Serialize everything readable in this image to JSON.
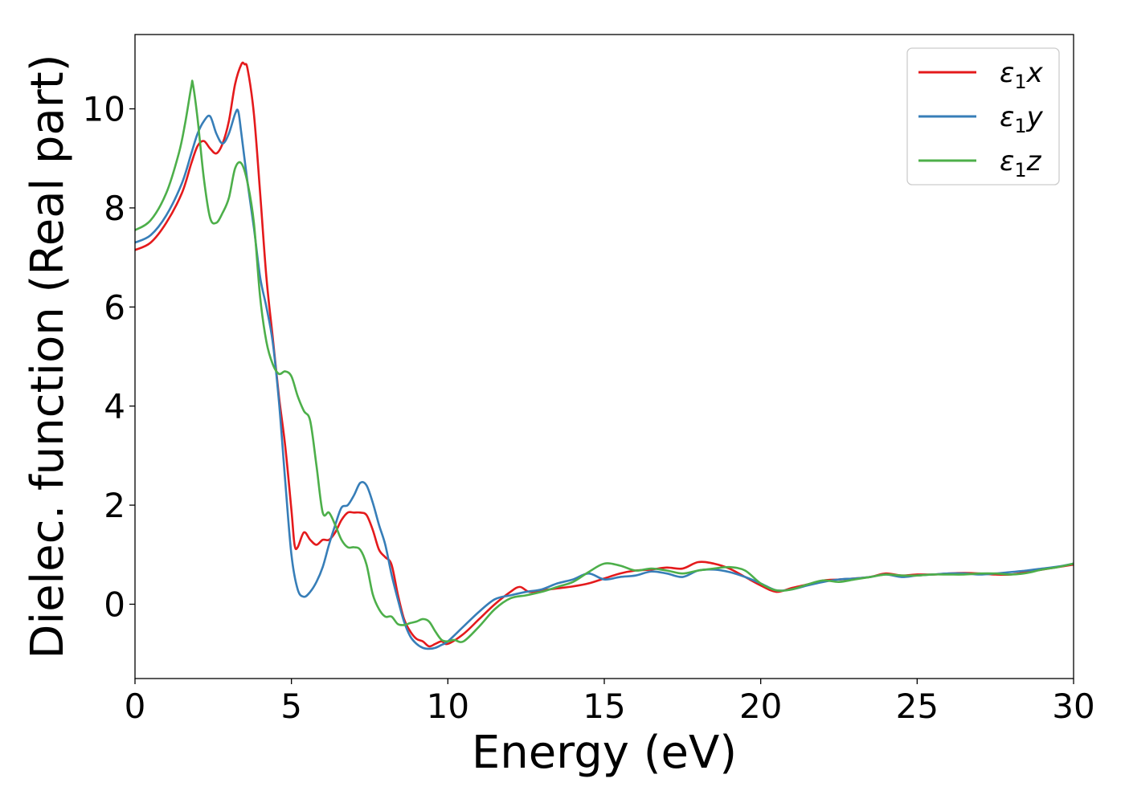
{
  "chart_data": {
    "type": "line",
    "title": "",
    "xlabel": "Energy (eV)",
    "ylabel": "Dielec. function (Real part)",
    "xlim": [
      0,
      30
    ],
    "ylim": [
      -1.5,
      11.5
    ],
    "xticks": [
      0,
      5,
      10,
      15,
      20,
      25,
      30
    ],
    "yticks": [
      0,
      2,
      4,
      6,
      8,
      10
    ],
    "grid": false,
    "legend_position": "top-right",
    "series": [
      {
        "name": "ε1x",
        "legend_base": "ε",
        "legend_sub": "1",
        "legend_var": "x",
        "color": "#e41a1c",
        "x": [
          0,
          0.5,
          1.0,
          1.5,
          1.8,
          2.0,
          2.2,
          2.4,
          2.6,
          2.8,
          3.0,
          3.2,
          3.4,
          3.5,
          3.6,
          3.8,
          4.0,
          4.2,
          4.4,
          4.6,
          4.8,
          5.0,
          5.1,
          5.2,
          5.4,
          5.6,
          5.8,
          6.0,
          6.2,
          6.4,
          6.6,
          6.8,
          7.0,
          7.2,
          7.4,
          7.6,
          7.8,
          8.0,
          8.2,
          8.4,
          8.6,
          8.8,
          9.0,
          9.2,
          9.4,
          9.6,
          9.8,
          10.0,
          10.5,
          11.0,
          11.5,
          12.0,
          12.3,
          12.6,
          13.0,
          13.5,
          14.0,
          14.5,
          15.0,
          15.5,
          16.0,
          16.5,
          17.0,
          17.5,
          18.0,
          18.5,
          19.0,
          19.5,
          20.0,
          20.5,
          21.0,
          21.5,
          22.0,
          22.5,
          23.0,
          23.5,
          24.0,
          24.5,
          25.0,
          25.5,
          26.0,
          26.5,
          27.0,
          27.5,
          28.0,
          28.5,
          29.0,
          29.5,
          30.0
        ],
        "y": [
          7.15,
          7.3,
          7.7,
          8.3,
          8.9,
          9.25,
          9.35,
          9.2,
          9.1,
          9.3,
          9.75,
          10.5,
          10.9,
          10.9,
          10.8,
          9.9,
          8.3,
          6.6,
          5.4,
          4.2,
          3.2,
          1.9,
          1.2,
          1.15,
          1.45,
          1.3,
          1.2,
          1.3,
          1.3,
          1.45,
          1.7,
          1.85,
          1.85,
          1.85,
          1.8,
          1.5,
          1.1,
          0.95,
          0.8,
          0.2,
          -0.3,
          -0.55,
          -0.7,
          -0.75,
          -0.85,
          -0.8,
          -0.75,
          -0.8,
          -0.6,
          -0.3,
          0.0,
          0.25,
          0.35,
          0.25,
          0.28,
          0.32,
          0.36,
          0.42,
          0.52,
          0.62,
          0.68,
          0.7,
          0.74,
          0.72,
          0.85,
          0.82,
          0.72,
          0.55,
          0.38,
          0.25,
          0.33,
          0.4,
          0.48,
          0.5,
          0.52,
          0.55,
          0.62,
          0.58,
          0.6,
          0.6,
          0.62,
          0.63,
          0.62,
          0.6,
          0.6,
          0.65,
          0.7,
          0.75,
          0.8
        ]
      },
      {
        "name": "ε1y",
        "legend_base": "ε",
        "legend_sub": "1",
        "legend_var": "y",
        "color": "#377eb8",
        "x": [
          0,
          0.5,
          1.0,
          1.5,
          1.8,
          2.0,
          2.2,
          2.4,
          2.6,
          2.8,
          3.0,
          3.2,
          3.3,
          3.4,
          3.6,
          3.8,
          4.0,
          4.2,
          4.4,
          4.6,
          4.8,
          5.0,
          5.2,
          5.4,
          5.6,
          5.8,
          6.0,
          6.2,
          6.4,
          6.6,
          6.8,
          7.0,
          7.2,
          7.4,
          7.6,
          7.8,
          8.0,
          8.2,
          8.4,
          8.6,
          8.8,
          9.0,
          9.2,
          9.4,
          9.6,
          9.8,
          10.0,
          10.5,
          11.0,
          11.5,
          12.0,
          12.5,
          13.0,
          13.5,
          14.0,
          14.5,
          15.0,
          15.5,
          16.0,
          16.5,
          17.0,
          17.5,
          18.0,
          18.5,
          19.0,
          19.5,
          20.0,
          20.5,
          21.0,
          21.5,
          22.0,
          22.5,
          23.0,
          23.5,
          24.0,
          24.5,
          25.0,
          25.5,
          26.0,
          26.5,
          27.0,
          27.5,
          28.0,
          28.5,
          29.0,
          29.5,
          30.0
        ],
        "y": [
          7.3,
          7.45,
          7.85,
          8.5,
          9.1,
          9.5,
          9.75,
          9.85,
          9.5,
          9.3,
          9.5,
          9.9,
          9.95,
          9.5,
          8.5,
          7.6,
          6.6,
          6.0,
          5.3,
          4.1,
          2.5,
          1.0,
          0.3,
          0.15,
          0.25,
          0.45,
          0.75,
          1.2,
          1.6,
          1.95,
          2.0,
          2.2,
          2.45,
          2.4,
          2.05,
          1.6,
          1.2,
          0.6,
          0.1,
          -0.35,
          -0.65,
          -0.8,
          -0.88,
          -0.9,
          -0.88,
          -0.82,
          -0.75,
          -0.45,
          -0.15,
          0.1,
          0.18,
          0.25,
          0.3,
          0.42,
          0.5,
          0.62,
          0.5,
          0.55,
          0.58,
          0.66,
          0.62,
          0.55,
          0.68,
          0.7,
          0.65,
          0.55,
          0.42,
          0.28,
          0.3,
          0.38,
          0.45,
          0.5,
          0.52,
          0.55,
          0.6,
          0.55,
          0.58,
          0.6,
          0.62,
          0.62,
          0.6,
          0.62,
          0.65,
          0.68,
          0.72,
          0.76,
          0.82
        ]
      },
      {
        "name": "ε1z",
        "legend_base": "ε",
        "legend_sub": "1",
        "legend_var": "z",
        "color": "#4daf4a",
        "x": [
          0,
          0.5,
          1.0,
          1.4,
          1.6,
          1.8,
          1.85,
          2.0,
          2.2,
          2.4,
          2.6,
          2.8,
          3.0,
          3.2,
          3.4,
          3.6,
          3.8,
          4.0,
          4.2,
          4.4,
          4.6,
          4.8,
          5.0,
          5.2,
          5.4,
          5.6,
          5.8,
          6.0,
          6.2,
          6.4,
          6.6,
          6.8,
          7.0,
          7.2,
          7.4,
          7.6,
          7.8,
          8.0,
          8.2,
          8.4,
          8.6,
          8.8,
          9.0,
          9.2,
          9.4,
          9.6,
          9.8,
          10.0,
          10.2,
          10.5,
          11.0,
          11.5,
          12.0,
          12.5,
          13.0,
          13.5,
          14.0,
          14.5,
          15.0,
          15.5,
          16.0,
          16.5,
          17.0,
          17.5,
          18.0,
          18.5,
          19.0,
          19.5,
          20.0,
          20.5,
          21.0,
          21.5,
          22.0,
          22.5,
          23.0,
          23.5,
          24.0,
          24.5,
          25.0,
          25.5,
          26.0,
          26.5,
          27.0,
          27.5,
          28.0,
          28.5,
          29.0,
          29.5,
          30.0
        ],
        "y": [
          7.55,
          7.75,
          8.3,
          9.1,
          9.7,
          10.45,
          10.5,
          9.8,
          8.6,
          7.8,
          7.7,
          7.9,
          8.2,
          8.8,
          8.9,
          8.5,
          7.7,
          6.2,
          5.3,
          4.85,
          4.65,
          4.7,
          4.6,
          4.2,
          3.9,
          3.7,
          2.8,
          1.85,
          1.85,
          1.6,
          1.3,
          1.15,
          1.15,
          1.1,
          0.8,
          0.2,
          -0.1,
          -0.25,
          -0.25,
          -0.4,
          -0.42,
          -0.38,
          -0.35,
          -0.3,
          -0.35,
          -0.55,
          -0.72,
          -0.75,
          -0.72,
          -0.75,
          -0.45,
          -0.1,
          0.12,
          0.18,
          0.25,
          0.35,
          0.45,
          0.65,
          0.82,
          0.78,
          0.68,
          0.72,
          0.68,
          0.62,
          0.68,
          0.72,
          0.75,
          0.68,
          0.42,
          0.28,
          0.3,
          0.4,
          0.48,
          0.45,
          0.5,
          0.55,
          0.6,
          0.58,
          0.58,
          0.6,
          0.6,
          0.6,
          0.62,
          0.62,
          0.6,
          0.63,
          0.7,
          0.75,
          0.82
        ]
      }
    ]
  }
}
